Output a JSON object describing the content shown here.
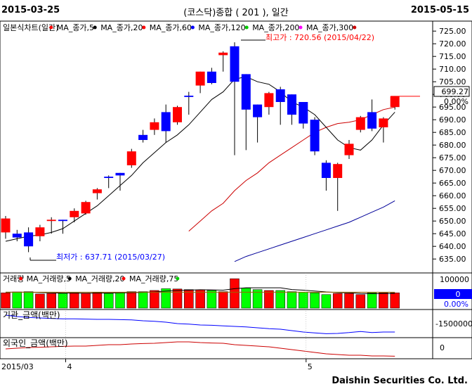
{
  "header": {
    "date_left": "2015-03-25",
    "title": "(코스닥)종합 ( 201 ), 일간",
    "date_right": "2015-05-15"
  },
  "brand": "Daishin Securities Co. Ltd.",
  "colors": {
    "up": "#ff0000",
    "down": "#0000ff",
    "ma5": "#000000",
    "ma20": "#cc0000",
    "ma60": "#000099",
    "vol_up": "#ff0000",
    "vol_down": "#00ff00"
  },
  "chart_data": {
    "type": "candlestick",
    "price_panel": {
      "legend": [
        "일본식차트(일간)",
        "MA_종가,5",
        "MA_종가,20",
        "MA_종가,60",
        "MA_종가,120",
        "MA_종가,200",
        "MA_종가,300"
      ],
      "legend_colors": [
        "#ff0000",
        "#000000",
        "#ff0000",
        "#0000ff",
        "#00cc00",
        "#ff00ff",
        "#cc0000"
      ],
      "y_ticks": [
        635,
        640,
        645,
        650,
        655,
        660,
        665,
        670,
        675,
        680,
        685,
        690,
        695,
        700,
        705,
        710,
        715,
        720,
        725
      ],
      "ylim": [
        632,
        727
      ],
      "current_price": "699.27",
      "current_change": "0.00%",
      "high_label": "최고가 : 720.56 (2015/04/22)",
      "low_label": "최저가 : 637.71 (2015/03/27)",
      "candles": [
        {
          "o": 645.5,
          "h": 652.0,
          "l": 643.0,
          "c": 651.0
        },
        {
          "o": 645.0,
          "h": 646.5,
          "l": 642.0,
          "c": 643.5
        },
        {
          "o": 645.5,
          "h": 647.5,
          "l": 637.7,
          "c": 640.0
        },
        {
          "o": 644.0,
          "h": 648.5,
          "l": 642.0,
          "c": 647.5
        },
        {
          "o": 650.0,
          "h": 651.5,
          "l": 645.0,
          "c": 650.5
        },
        {
          "o": 650.5,
          "h": 650.5,
          "l": 645.0,
          "c": 650.0
        },
        {
          "o": 651.5,
          "h": 655.0,
          "l": 649.5,
          "c": 654.0
        },
        {
          "o": 653.0,
          "h": 658.0,
          "l": 652.5,
          "c": 657.5
        },
        {
          "o": 661.0,
          "h": 663.0,
          "l": 658.5,
          "c": 662.5
        },
        {
          "o": 667.5,
          "h": 668.0,
          "l": 663.0,
          "c": 667.0
        },
        {
          "o": 669.0,
          "h": 669.0,
          "l": 662.0,
          "c": 668.0
        },
        {
          "o": 672.0,
          "h": 678.5,
          "l": 671.0,
          "c": 677.5
        },
        {
          "o": 684.0,
          "h": 686.0,
          "l": 681.0,
          "c": 682.0
        },
        {
          "o": 686.0,
          "h": 690.5,
          "l": 684.0,
          "c": 689.0
        },
        {
          "o": 693.0,
          "h": 696.0,
          "l": 681.0,
          "c": 685.5
        },
        {
          "o": 689.0,
          "h": 695.5,
          "l": 688.0,
          "c": 695.0
        },
        {
          "o": 699.5,
          "h": 701.0,
          "l": 692.0,
          "c": 699.0
        },
        {
          "o": 703.5,
          "h": 709.0,
          "l": 700.5,
          "c": 709.0
        },
        {
          "o": 709.0,
          "h": 710.5,
          "l": 704.0,
          "c": 704.5
        },
        {
          "o": 715.5,
          "h": 717.0,
          "l": 709.0,
          "c": 716.5
        },
        {
          "o": 719.0,
          "h": 720.56,
          "l": 676.0,
          "c": 705.0
        },
        {
          "o": 708.0,
          "h": 708.0,
          "l": 678.0,
          "c": 694.0
        },
        {
          "o": 696.0,
          "h": 696.0,
          "l": 681.0,
          "c": 691.0
        },
        {
          "o": 695.0,
          "h": 701.0,
          "l": 692.0,
          "c": 700.5
        },
        {
          "o": 702.0,
          "h": 703.0,
          "l": 688.0,
          "c": 697.0
        },
        {
          "o": 700.0,
          "h": 700.0,
          "l": 688.0,
          "c": 692.0
        },
        {
          "o": 697.0,
          "h": 697.0,
          "l": 686.5,
          "c": 688.5
        },
        {
          "o": 690.0,
          "h": 691.0,
          "l": 676.0,
          "c": 677.5
        },
        {
          "o": 673.0,
          "h": 674.0,
          "l": 662.0,
          "c": 667.0
        },
        {
          "o": 667.0,
          "h": 673.0,
          "l": 654.0,
          "c": 672.5
        },
        {
          "o": 676.0,
          "h": 682.0,
          "l": 674.5,
          "c": 680.5
        },
        {
          "o": 686.0,
          "h": 691.5,
          "l": 685.0,
          "c": 691.0
        },
        {
          "o": 693.0,
          "h": 698.0,
          "l": 685.5,
          "c": 686.5
        },
        {
          "o": 687.0,
          "h": 691.0,
          "l": 681.0,
          "c": 690.5
        },
        {
          "o": 695.0,
          "h": 699.27,
          "l": 694.0,
          "c": 699.27
        }
      ],
      "ma5": [
        642,
        643,
        644,
        644.5,
        645.5,
        647,
        650,
        653,
        656,
        660,
        664,
        668,
        673,
        677,
        681,
        684,
        688,
        693,
        698,
        701,
        706,
        707,
        705,
        704,
        701,
        697,
        695,
        692,
        687,
        682,
        679,
        678,
        682,
        688,
        693
      ],
      "ma20": [
        null,
        null,
        null,
        null,
        null,
        null,
        null,
        null,
        null,
        null,
        null,
        null,
        null,
        null,
        null,
        null,
        646,
        650,
        654,
        657,
        662,
        666,
        669,
        673,
        676,
        679,
        682,
        685,
        687,
        688.5,
        689,
        690,
        692,
        694,
        695
      ],
      "ma60": [
        null,
        null,
        null,
        null,
        null,
        null,
        null,
        null,
        null,
        null,
        null,
        null,
        null,
        null,
        null,
        null,
        null,
        null,
        null,
        null,
        634,
        636,
        637.5,
        639,
        640.5,
        642,
        643.5,
        645,
        646.5,
        648,
        649.5,
        651.5,
        653.5,
        655.5,
        658
      ]
    },
    "volume_panel": {
      "legend": [
        "거래량",
        "MA_거래량,5",
        "MA_거래량,20",
        "MA_거래량,75"
      ],
      "legend_colors": [
        "#ff0000",
        "#000000",
        "#ff0000",
        "#00cc00"
      ],
      "y_ticks": [
        100000,
        50000
      ],
      "current_value": "0",
      "current_change": "0.00%",
      "ylim": [
        0,
        110000
      ],
      "values": [
        52000,
        55000,
        56000,
        48000,
        50000,
        50000,
        52000,
        51000,
        53000,
        50000,
        52000,
        56000,
        56000,
        60000,
        66000,
        65000,
        63000,
        62000,
        60000,
        56000,
        100000,
        68000,
        63000,
        60000,
        60000,
        56000,
        54000,
        52000,
        46000,
        50000,
        50000,
        46000,
        52000,
        52000,
        52000
      ],
      "up": [
        true,
        false,
        false,
        true,
        true,
        false,
        true,
        true,
        true,
        false,
        false,
        true,
        false,
        true,
        false,
        true,
        true,
        true,
        false,
        true,
        true,
        false,
        false,
        true,
        false,
        false,
        false,
        false,
        false,
        true,
        true,
        true,
        false,
        true,
        true
      ],
      "ma5": [
        54000,
        54000,
        54000,
        53000,
        52000,
        51000,
        51000,
        50500,
        51000,
        51500,
        52000,
        52500,
        53500,
        55000,
        58000,
        60000,
        61000,
        62500,
        62000,
        61000,
        66000,
        69000,
        69000,
        69000,
        69000,
        63000,
        61000,
        58000,
        55000,
        53000,
        52000,
        50000,
        49000,
        49500,
        50000
      ]
    },
    "amount_panel": {
      "label": "기관_금액(백만)",
      "y_tick": "-1500000",
      "values": [
        0.0,
        -0.05,
        -0.08,
        -0.1,
        -0.12,
        -0.13,
        -0.13,
        -0.14,
        -0.15,
        -0.15,
        -0.16,
        -0.17,
        -0.2,
        -0.22,
        -0.25,
        -0.3,
        -0.32,
        -0.35,
        -0.36,
        -0.38,
        -0.4,
        -0.42,
        -0.45,
        -0.48,
        -0.5,
        -0.55,
        -0.6,
        -0.63,
        -0.66,
        -0.65,
        -0.62,
        -0.58,
        -0.62,
        -0.6,
        -0.6
      ]
    },
    "foreign_panel": {
      "label": "외국인_금액(백만)",
      "y_tick": "0",
      "values": [
        0.0,
        0.05,
        0.1,
        0.12,
        0.15,
        0.18,
        0.2,
        0.2,
        0.25,
        0.3,
        0.3,
        0.35,
        0.38,
        0.4,
        0.45,
        0.5,
        0.5,
        0.45,
        0.42,
        0.4,
        0.3,
        0.25,
        0.2,
        0.15,
        0.05,
        -0.05,
        -0.15,
        -0.25,
        -0.35,
        -0.4,
        -0.45,
        -0.45,
        -0.5,
        -0.5,
        -0.52
      ]
    },
    "x_ticks": [
      {
        "label": "2015/03",
        "index": 0
      },
      {
        "label": "4",
        "index": 5
      },
      {
        "label": "5",
        "index": 26
      }
    ]
  }
}
